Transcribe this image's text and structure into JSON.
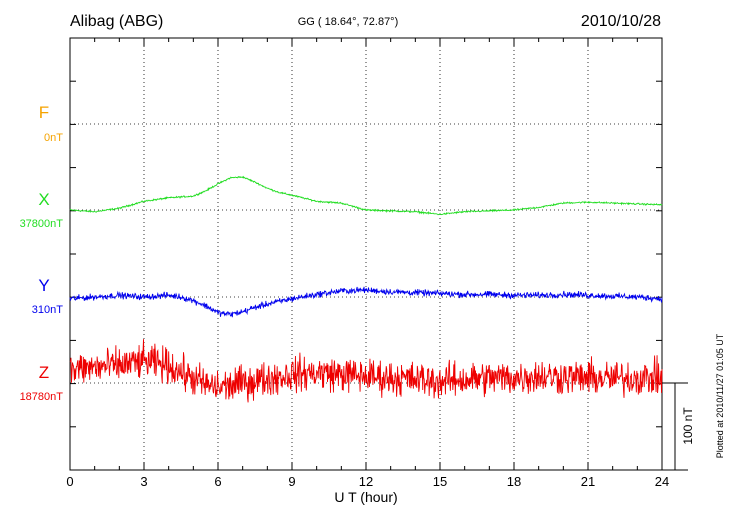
{
  "header": {
    "station": "Alibag (ABG)",
    "coords": "GG ( 18.64°,  72.87°)",
    "date": "2010/10/28"
  },
  "plotted_note": "Plotted at 2010/11/27 01:05 UT",
  "scale_bar": {
    "label": "100 nT",
    "value_nT": 100
  },
  "chart_data": {
    "type": "line",
    "title": "Alibag (ABG)",
    "xlabel": "U T (hour)",
    "ylabel": "",
    "xlim": [
      0,
      24
    ],
    "x_ticks": [
      0,
      3,
      6,
      9,
      12,
      15,
      18,
      21,
      24
    ],
    "x_tick_labels": [
      "0",
      "3",
      "6",
      "9",
      "12",
      "15",
      "18",
      "21",
      "24"
    ],
    "grid": true,
    "series": [
      {
        "name": "F",
        "baseline_label": "0nT",
        "color": "#f5a300",
        "noise": 0,
        "x": [],
        "y": []
      },
      {
        "name": "X",
        "baseline_label": "37800nT",
        "color": "#22dd22",
        "noise": 1.5,
        "x": [
          0,
          1,
          2,
          3,
          4,
          5,
          5.5,
          6,
          6.5,
          7,
          7.5,
          8,
          8.5,
          9,
          10,
          11,
          12,
          13,
          14,
          15,
          16,
          17,
          18,
          19,
          20,
          21,
          22,
          23,
          24
        ],
        "y": [
          0,
          -2,
          2,
          10,
          14,
          16,
          22,
          30,
          37,
          38,
          32,
          25,
          20,
          17,
          10,
          8,
          0,
          -1,
          -2,
          -5,
          -2,
          -1,
          0,
          3,
          8,
          9,
          8,
          7,
          6
        ]
      },
      {
        "name": "Y",
        "baseline_label": "310nT",
        "color": "#0000ee",
        "noise": 6,
        "x": [
          0,
          1,
          2,
          3,
          4,
          4.5,
          5,
          5.5,
          6,
          6.5,
          7,
          7.5,
          8,
          9,
          10,
          11,
          12,
          13,
          14,
          15,
          16,
          17,
          18,
          19,
          20,
          21,
          22,
          23,
          24
        ],
        "y": [
          -2,
          0,
          2,
          0,
          2,
          0,
          -4,
          -10,
          -18,
          -20,
          -17,
          -12,
          -8,
          -2,
          3,
          7,
          8,
          6,
          5,
          4,
          3,
          3,
          2,
          2,
          3,
          2,
          1,
          0,
          -2
        ]
      },
      {
        "name": "Z",
        "baseline_label": "18780nT",
        "color": "#ee0000",
        "noise": 34,
        "x": [
          0,
          1,
          2,
          3,
          4,
          5,
          5.5,
          6,
          6.5,
          7,
          8,
          9,
          10,
          11,
          12,
          13,
          14,
          15,
          16,
          17,
          18,
          19,
          20,
          21,
          22,
          23,
          24
        ],
        "y": [
          15,
          18,
          20,
          25,
          20,
          5,
          -2,
          -5,
          -3,
          0,
          5,
          10,
          12,
          10,
          8,
          6,
          4,
          2,
          4,
          6,
          6,
          8,
          7,
          6,
          5,
          6,
          6
        ]
      }
    ]
  }
}
